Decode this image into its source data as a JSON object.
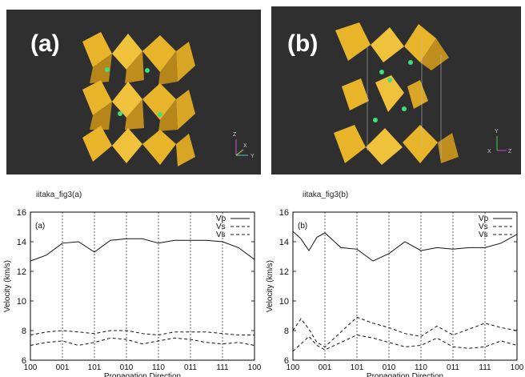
{
  "panels": [
    {
      "letter": "(a)",
      "figure_id": "iitaka_fig3(a)",
      "axis_labels": [
        "Z",
        "X",
        "Y"
      ]
    },
    {
      "letter": "(b)",
      "figure_id": "iitaka_fig3(b)",
      "axis_labels": [
        "Y",
        "X",
        "Z"
      ]
    }
  ],
  "colors": {
    "polyhedra": "#e8b52a",
    "polyhedra_dark": "#b7861a",
    "atoms": "#3fe07a",
    "background": "#2f2f2f"
  },
  "chart_data": [
    {
      "type": "line",
      "panel_label": "(a)",
      "xlabel": "Propagation Direction",
      "ylabel": "Velocity (km/s)",
      "x_ticks": [
        "100",
        "001",
        "101",
        "010",
        "110",
        "011",
        "111",
        "100"
      ],
      "ylim": [
        6,
        16
      ],
      "y_ticks": [
        6,
        8,
        10,
        12,
        14,
        16
      ],
      "grid": "vertical dashed at tick directions",
      "legend_position": "top-right",
      "series": [
        {
          "name": "Vp",
          "style": "solid",
          "x": [
            0,
            0.5,
            1,
            1.5,
            2,
            2.5,
            3,
            3.5,
            4,
            4.5,
            5,
            5.5,
            6,
            6.5,
            7
          ],
          "values": [
            12.7,
            13.1,
            13.9,
            14.0,
            13.3,
            14.1,
            14.2,
            14.2,
            13.9,
            14.1,
            14.1,
            14.1,
            14.0,
            13.6,
            12.8
          ]
        },
        {
          "name": "Vs",
          "style": "dashed",
          "x": [
            0,
            0.5,
            1,
            1.5,
            2,
            2.5,
            3,
            3.5,
            4,
            4.5,
            5,
            5.5,
            6,
            6.5,
            7
          ],
          "values": [
            7.7,
            7.9,
            8.0,
            7.9,
            7.8,
            8.0,
            8.0,
            7.8,
            7.7,
            7.9,
            7.9,
            7.9,
            7.8,
            7.7,
            7.7
          ]
        },
        {
          "name": "Vs",
          "style": "dashed",
          "x": [
            0,
            0.5,
            1,
            1.5,
            2,
            2.5,
            3,
            3.5,
            4,
            4.5,
            5,
            5.5,
            6,
            6.5,
            7
          ],
          "values": [
            7.0,
            7.2,
            7.3,
            7.0,
            7.2,
            7.5,
            7.4,
            7.1,
            7.3,
            7.5,
            7.4,
            7.2,
            7.1,
            7.2,
            7.0
          ]
        }
      ]
    },
    {
      "type": "line",
      "panel_label": "(b)",
      "xlabel": "Propagation Direction",
      "ylabel": "Velocity (km/s)",
      "x_ticks": [
        "100",
        "001",
        "101",
        "010",
        "110",
        "011",
        "111",
        "100"
      ],
      "ylim": [
        6,
        16
      ],
      "y_ticks": [
        6,
        8,
        10,
        12,
        14,
        16
      ],
      "grid": "vertical dashed at tick directions",
      "legend_position": "top-right",
      "series": [
        {
          "name": "Vp",
          "style": "solid",
          "x": [
            0,
            0.25,
            0.5,
            0.75,
            1,
            1.5,
            2,
            2.5,
            3,
            3.5,
            4,
            4.5,
            5,
            5.5,
            6,
            6.5,
            7
          ],
          "values": [
            14.7,
            14.2,
            13.4,
            14.3,
            14.6,
            13.6,
            13.5,
            12.7,
            13.2,
            14.0,
            13.4,
            13.6,
            13.5,
            13.6,
            13.6,
            13.9,
            14.5
          ]
        },
        {
          "name": "Vs",
          "style": "dashed",
          "x": [
            0,
            0.25,
            0.5,
            0.75,
            1,
            1.5,
            2,
            2.5,
            3,
            3.5,
            4,
            4.5,
            5,
            5.5,
            6,
            6.5,
            7
          ],
          "values": [
            8.0,
            8.8,
            8.1,
            7.2,
            6.9,
            7.9,
            8.9,
            8.5,
            8.2,
            7.8,
            7.6,
            8.3,
            7.7,
            8.1,
            8.5,
            8.2,
            8.0
          ]
        },
        {
          "name": "Vs",
          "style": "dashed",
          "x": [
            0,
            0.25,
            0.5,
            0.75,
            1,
            1.5,
            2,
            2.5,
            3,
            3.5,
            4,
            4.5,
            5,
            5.5,
            6,
            6.5,
            7
          ],
          "values": [
            6.6,
            7.1,
            7.6,
            7.0,
            6.7,
            7.2,
            7.7,
            7.5,
            7.2,
            6.9,
            7.0,
            7.5,
            6.9,
            6.8,
            6.9,
            7.3,
            7.0
          ]
        }
      ]
    }
  ]
}
